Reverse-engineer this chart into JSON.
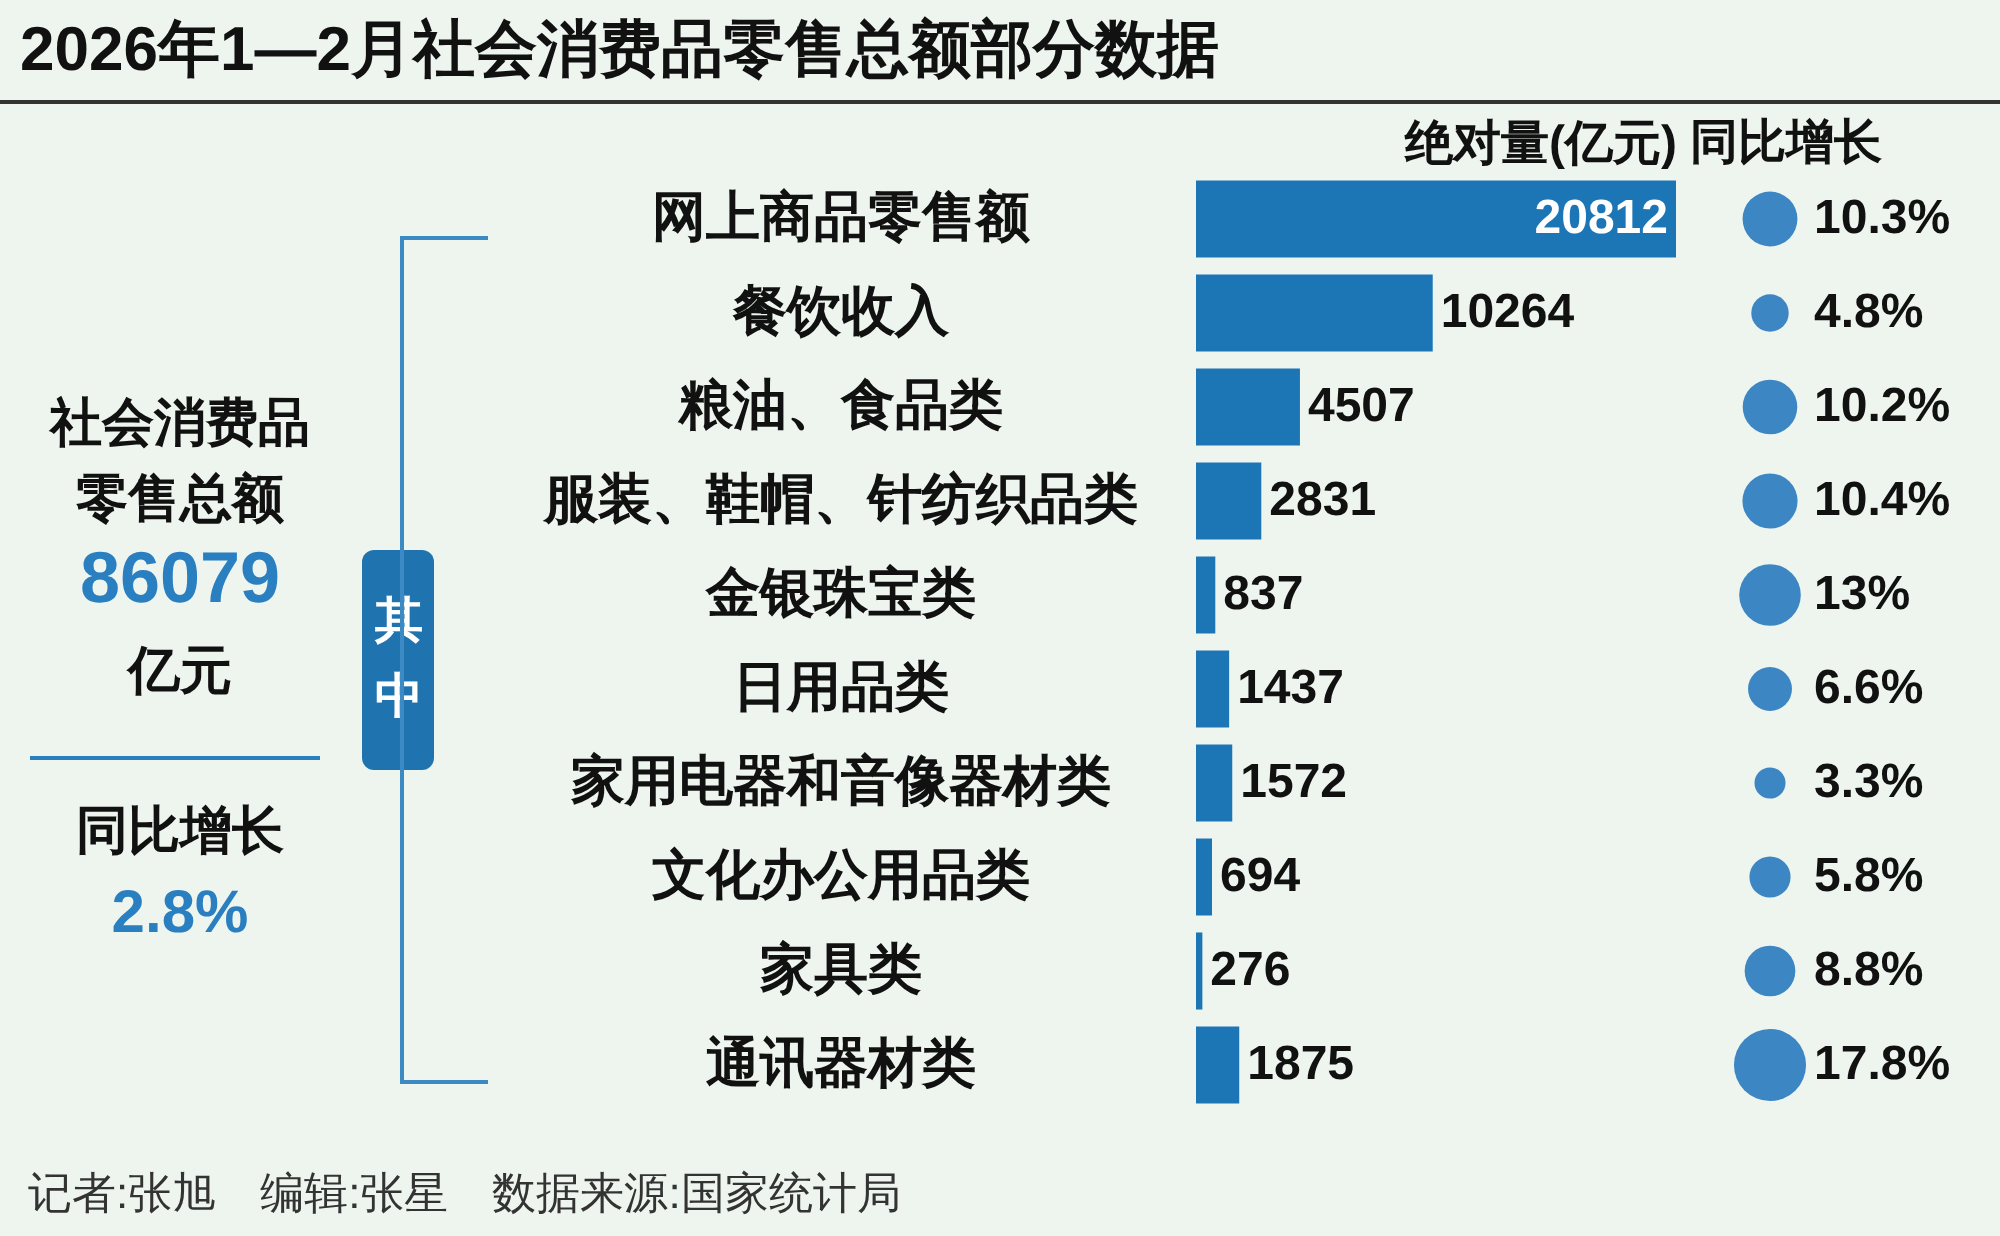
{
  "chart_data": [
    {
      "type": "other",
      "title": "2026年1—2月社会消费品零售总额部分数据",
      "annotations": [
        "社会消费品零售总额",
        "86079",
        "亿元",
        "同比增长",
        "2.8%",
        "其中",
        "记者:张旭　编辑:张星　数据来源:国家统计局"
      ]
    },
    {
      "type": "bar",
      "orientation": "horizontal",
      "xlabel": "绝对量(亿元)",
      "categories": [
        "网上商品零售额",
        "餐饮收入",
        "粮油、食品类",
        "服装、鞋帽、针纺织品类",
        "金银珠宝类",
        "日用品类",
        "家用电器和音像器材类",
        "文化办公用品类",
        "家具类",
        "通讯器材类"
      ],
      "values": [
        20812,
        10264,
        4507,
        2831,
        837,
        1437,
        1572,
        694,
        276,
        1875
      ],
      "color": "#1c76b6",
      "xlim": [
        0,
        20812
      ],
      "data_labels": true,
      "tick_labels": "y",
      "grid": false
    },
    {
      "type": "other",
      "xlabel": "同比增长",
      "categories": [
        null,
        null,
        null,
        null,
        null,
        null,
        null,
        null,
        null,
        null
      ],
      "values": [
        10.3,
        4.8,
        10.2,
        10.4,
        13,
        6.6,
        3.3,
        5.8,
        8.8,
        17.8
      ],
      "value_labels": [
        "10.3%",
        "4.8%",
        "10.2%",
        "10.4%",
        "13%",
        "6.6%",
        "3.3%",
        "5.8%",
        "8.8%",
        "17.8%"
      ],
      "color": "#3d86c4"
    }
  ]
}
